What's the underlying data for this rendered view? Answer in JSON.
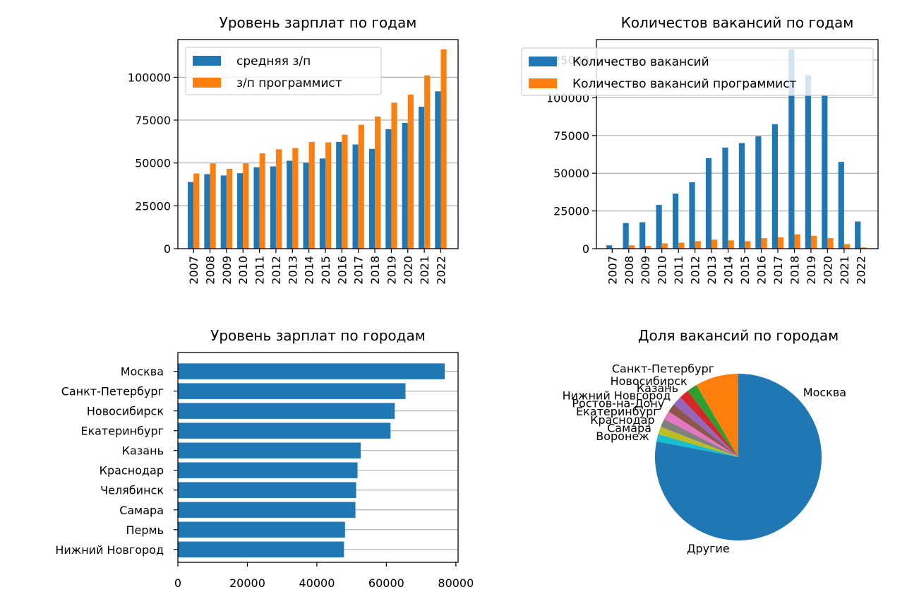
{
  "colors": {
    "blue": "#1f77b4",
    "orange": "#ff7f0e",
    "grid": "#b0b0b0",
    "pie": [
      "#1f77b4",
      "#ff7f0e",
      "#2ca02c",
      "#d62728",
      "#9467bd",
      "#8c564b",
      "#e377c2",
      "#7f7f7f",
      "#bcbd22",
      "#17becf",
      "#1f77b4"
    ]
  },
  "chart_data": [
    {
      "type": "bar",
      "title": "Уровень зарплат по годам",
      "categories": [
        "2007",
        "2008",
        "2009",
        "2010",
        "2011",
        "2012",
        "2013",
        "2014",
        "2015",
        "2016",
        "2017",
        "2018",
        "2019",
        "2020",
        "2021",
        "2022"
      ],
      "series": [
        {
          "name": "средняя з/п",
          "values": [
            38900,
            43500,
            42700,
            44000,
            47500,
            48000,
            51300,
            50200,
            52600,
            62300,
            60800,
            58200,
            69700,
            73400,
            82800,
            91800
          ]
        },
        {
          "name": "з/п программист",
          "values": [
            43900,
            49700,
            46600,
            49800,
            55600,
            58000,
            58700,
            62300,
            62000,
            66500,
            72300,
            77100,
            85200,
            89900,
            101100,
            116300
          ]
        }
      ],
      "yticks": [
        0,
        25000,
        50000,
        75000,
        100000
      ],
      "ylim": [
        0,
        122000
      ],
      "grid": "y",
      "legend": "upper-left"
    },
    {
      "type": "bar",
      "title": "Количестов вакансий по годам",
      "categories": [
        "2007",
        "2008",
        "2009",
        "2010",
        "2011",
        "2012",
        "2013",
        "2014",
        "2015",
        "2016",
        "2017",
        "2018",
        "2019",
        "2020",
        "2021",
        "2022"
      ],
      "series": [
        {
          "name": "Количество вакансий",
          "values": [
            2200,
            17000,
            17500,
            29000,
            36500,
            44000,
            60000,
            67000,
            70000,
            74500,
            82500,
            132000,
            115000,
            102000,
            57500,
            18000
          ]
        },
        {
          "name": "Количество вакансий программист",
          "values": [
            300,
            2200,
            1800,
            3500,
            4000,
            5000,
            6000,
            5500,
            5000,
            7000,
            7500,
            9500,
            8500,
            7000,
            3000,
            800
          ]
        }
      ],
      "yticks": [
        0,
        25000,
        50000,
        75000,
        100000,
        125000
      ],
      "ylim": [
        0,
        138600
      ],
      "grid": "y",
      "legend": "upper-right"
    },
    {
      "type": "barh",
      "title": "Уровень зарплат по городам",
      "categories": [
        "Москва",
        "Санкт-Петербург",
        "Новосибирск",
        "Екатеринбург",
        "Казань",
        "Краснодар",
        "Челябинск",
        "Самара",
        "Пермь",
        "Нижний Новгород"
      ],
      "values": [
        76800,
        65500,
        62400,
        61200,
        52600,
        51700,
        51300,
        51100,
        48100,
        47800
      ],
      "xticks": [
        0,
        20000,
        40000,
        60000,
        80000
      ],
      "xlim": [
        0,
        80640
      ],
      "grid": "y"
    },
    {
      "type": "pie",
      "title": "Доля вакансий по городам",
      "labels": [
        "Москва",
        "Санкт-Петербург",
        "Новосибирск",
        "Казань",
        "Нижний Новгород",
        "Ростов-на-Дону",
        "Екатеринбург",
        "Краснодар",
        "Самара",
        "Воронеж",
        "Другие"
      ],
      "values": [
        0.25,
        0.084,
        0.02,
        0.019,
        0.018,
        0.017,
        0.017,
        0.016,
        0.015,
        0.014,
        0.53
      ]
    }
  ]
}
